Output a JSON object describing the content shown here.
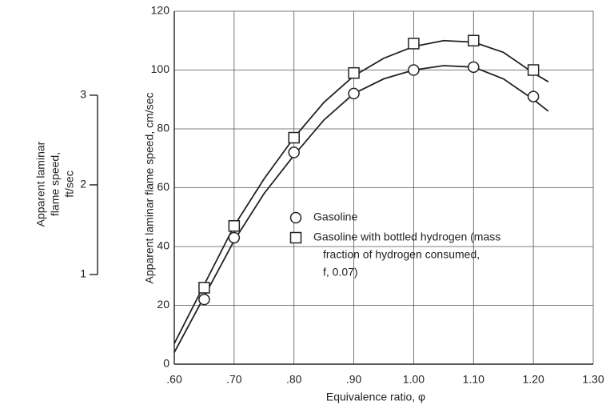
{
  "chart_data": {
    "type": "scatter",
    "xlabel": "Equivalence ratio, φ",
    "ylabel": "Apparent laminar flame speed, cm/sec",
    "y2label": [
      "Apparent laminar",
      "flame speed,",
      "ft/sec"
    ],
    "xlim": [
      0.6,
      1.3
    ],
    "xticks": [
      {
        "value": 0.6,
        "label": ".60"
      },
      {
        "value": 0.7,
        "label": ".70"
      },
      {
        "value": 0.8,
        "label": ".80"
      },
      {
        "value": 0.9,
        "label": ".90"
      },
      {
        "value": 1.0,
        "label": "1.00"
      },
      {
        "value": 1.1,
        "label": "1.10"
      },
      {
        "value": 1.2,
        "label": "1.20"
      },
      {
        "value": 1.3,
        "label": "1.30"
      }
    ],
    "ylim": [
      0,
      120
    ],
    "yticks": [
      0,
      20,
      40,
      60,
      80,
      100,
      120
    ],
    "y2lim": [
      0,
      3.937
    ],
    "y2ticks": [
      1,
      2,
      3
    ],
    "grid": true,
    "series": [
      {
        "name": [
          "Gasoline"
        ],
        "marker": "circle",
        "color": "#222",
        "x": [
          0.65,
          0.7,
          0.8,
          0.9,
          1.0,
          1.1,
          1.2
        ],
        "values": [
          22,
          43,
          72,
          92,
          100,
          101,
          91
        ]
      },
      {
        "name": [
          "Gasoline with bottled hydrogen (mass",
          "fraction of hydrogen consumed,",
          "f, 0.07)"
        ],
        "marker": "square",
        "color": "#222",
        "x": [
          0.65,
          0.7,
          0.8,
          0.9,
          1.0,
          1.1,
          1.2
        ],
        "values": [
          26,
          47,
          77,
          99,
          109,
          110,
          100
        ]
      }
    ],
    "curves": [
      {
        "color": "#222",
        "x": [
          0.6,
          0.65,
          0.7,
          0.75,
          0.8,
          0.85,
          0.9,
          0.95,
          1.0,
          1.05,
          1.1,
          1.15,
          1.2,
          1.225
        ],
        "values": [
          4,
          23,
          42,
          58,
          71,
          83,
          92,
          97,
          100,
          101.5,
          101,
          97,
          90,
          86
        ]
      },
      {
        "color": "#222",
        "x": [
          0.6,
          0.65,
          0.7,
          0.75,
          0.8,
          0.85,
          0.9,
          0.95,
          1.0,
          1.05,
          1.1,
          1.15,
          1.2,
          1.225
        ],
        "values": [
          7,
          27,
          47,
          63,
          77,
          89,
          98,
          104,
          108,
          110,
          109.5,
          106,
          99,
          96
        ]
      }
    ]
  }
}
